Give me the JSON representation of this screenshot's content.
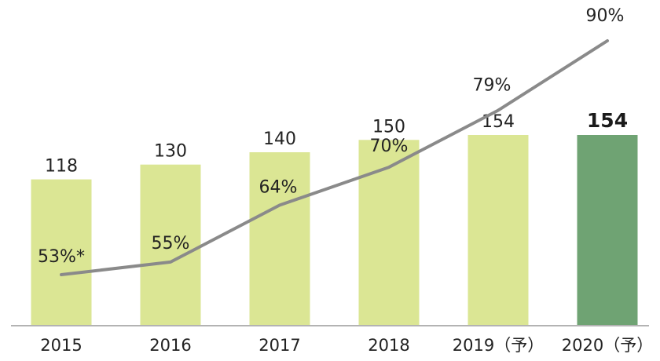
{
  "chart_data": {
    "type": "bar",
    "categories": [
      "2015",
      "2016",
      "2017",
      "2018",
      "2019（予）",
      "2020（予）"
    ],
    "series": [
      {
        "type": "bar",
        "values": [
          118,
          130,
          140,
          150,
          154,
          154
        ],
        "labels": [
          "118",
          "130",
          "140",
          "150",
          "154",
          "154"
        ]
      },
      {
        "type": "line",
        "values": [
          53,
          55,
          64,
          70,
          79,
          90
        ],
        "labels": [
          "53%*",
          "55%",
          "64%",
          "70%",
          "79%",
          "90%"
        ]
      }
    ],
    "highlight_index": 5,
    "colors": {
      "bar": "#dbe694",
      "bar_highlight": "#6fa373",
      "line": "#8a8a8a",
      "axis": "#9a9a9a"
    },
    "grid": false,
    "legend": "none"
  }
}
